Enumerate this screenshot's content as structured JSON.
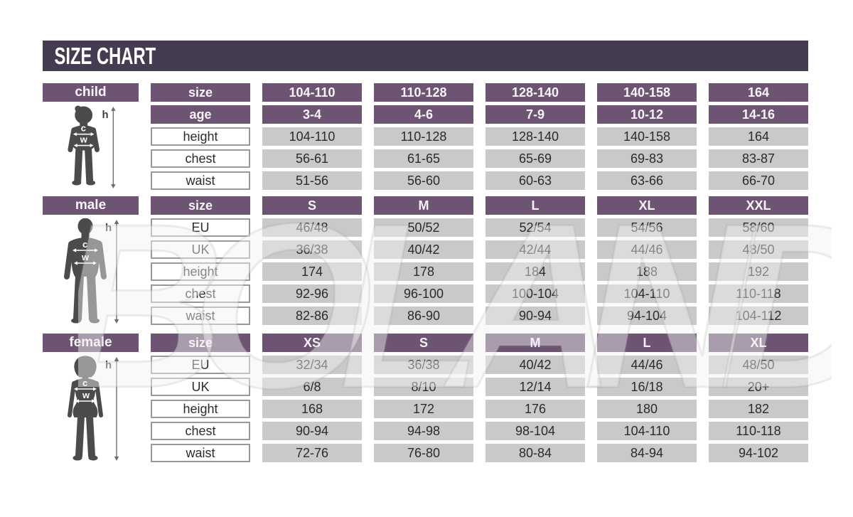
{
  "title": "SIZE CHART",
  "watermark": "BOLAND",
  "colors": {
    "banner": "#463c52",
    "header_purple": "#6c5472",
    "cell_gray": "#c9c9c9",
    "silhouette": "#4b4b4b",
    "label_border": "#999999",
    "text_dark": "#2b2b2b"
  },
  "figure_labels": {
    "height": "h",
    "chest": "c",
    "waist": "w"
  },
  "sections": [
    {
      "id": "child",
      "label": "child",
      "rows": [
        {
          "label": "size",
          "type": "header",
          "values": [
            "104-110",
            "110-128",
            "128-140",
            "140-158",
            "164"
          ]
        },
        {
          "label": "age",
          "type": "header",
          "values": [
            "3-4",
            "4-6",
            "7-9",
            "10-12",
            "14-16"
          ]
        },
        {
          "label": "height",
          "type": "data",
          "values": [
            "104-110",
            "110-128",
            "128-140",
            "140-158",
            "164"
          ]
        },
        {
          "label": "chest",
          "type": "data",
          "values": [
            "56-61",
            "61-65",
            "65-69",
            "69-83",
            "83-87"
          ]
        },
        {
          "label": "waist",
          "type": "data",
          "values": [
            "51-56",
            "56-60",
            "60-63",
            "63-66",
            "66-70"
          ]
        }
      ]
    },
    {
      "id": "male",
      "label": "male",
      "rows": [
        {
          "label": "size",
          "type": "header",
          "values": [
            "S",
            "M",
            "L",
            "XL",
            "XXL"
          ]
        },
        {
          "label": "EU",
          "type": "data",
          "values": [
            "46/48",
            "50/52",
            "52/54",
            "54/56",
            "58/60"
          ]
        },
        {
          "label": "UK",
          "type": "data",
          "values": [
            "36/38",
            "40/42",
            "42/44",
            "44/46",
            "48/50"
          ]
        },
        {
          "label": "height",
          "type": "data",
          "values": [
            "174",
            "178",
            "184",
            "188",
            "192"
          ]
        },
        {
          "label": "chest",
          "type": "data",
          "values": [
            "92-96",
            "96-100",
            "100-104",
            "104-110",
            "110-118"
          ]
        },
        {
          "label": "waist",
          "type": "data",
          "values": [
            "82-86",
            "86-90",
            "90-94",
            "94-104",
            "104-112"
          ]
        }
      ]
    },
    {
      "id": "female",
      "label": "female",
      "rows": [
        {
          "label": "size",
          "type": "header",
          "values": [
            "XS",
            "S",
            "M",
            "L",
            "XL"
          ]
        },
        {
          "label": "EU",
          "type": "data",
          "values": [
            "32/34",
            "36/38",
            "40/42",
            "44/46",
            "48/50"
          ]
        },
        {
          "label": "UK",
          "type": "data",
          "values": [
            "6/8",
            "8/10",
            "12/14",
            "16/18",
            "20+"
          ]
        },
        {
          "label": "height",
          "type": "data",
          "values": [
            "168",
            "172",
            "176",
            "180",
            "182"
          ]
        },
        {
          "label": "chest",
          "type": "data",
          "values": [
            "90-94",
            "94-98",
            "98-104",
            "104-110",
            "110-118"
          ]
        },
        {
          "label": "waist",
          "type": "data",
          "values": [
            "72-76",
            "76-80",
            "80-84",
            "84-94",
            "94-102"
          ]
        }
      ]
    }
  ],
  "chart_data": [
    {
      "type": "table",
      "title": "child",
      "row_labels": [
        "size",
        "age",
        "height",
        "chest",
        "waist"
      ],
      "rows": [
        [
          "104-110",
          "110-128",
          "128-140",
          "140-158",
          "164"
        ],
        [
          "3-4",
          "4-6",
          "7-9",
          "10-12",
          "14-16"
        ],
        [
          "104-110",
          "110-128",
          "128-140",
          "140-158",
          "164"
        ],
        [
          "56-61",
          "61-65",
          "65-69",
          "69-83",
          "83-87"
        ],
        [
          "51-56",
          "56-60",
          "60-63",
          "63-66",
          "66-70"
        ]
      ]
    },
    {
      "type": "table",
      "title": "male",
      "row_labels": [
        "size",
        "EU",
        "UK",
        "height",
        "chest",
        "waist"
      ],
      "rows": [
        [
          "S",
          "M",
          "L",
          "XL",
          "XXL"
        ],
        [
          "46/48",
          "50/52",
          "52/54",
          "54/56",
          "58/60"
        ],
        [
          "36/38",
          "40/42",
          "42/44",
          "44/46",
          "48/50"
        ],
        [
          "174",
          "178",
          "184",
          "188",
          "192"
        ],
        [
          "92-96",
          "96-100",
          "100-104",
          "104-110",
          "110-118"
        ],
        [
          "82-86",
          "86-90",
          "90-94",
          "94-104",
          "104-112"
        ]
      ]
    },
    {
      "type": "table",
      "title": "female",
      "row_labels": [
        "size",
        "EU",
        "UK",
        "height",
        "chest",
        "waist"
      ],
      "rows": [
        [
          "XS",
          "S",
          "M",
          "L",
          "XL"
        ],
        [
          "32/34",
          "36/38",
          "40/42",
          "44/46",
          "48/50"
        ],
        [
          "6/8",
          "8/10",
          "12/14",
          "16/18",
          "20+"
        ],
        [
          "168",
          "172",
          "176",
          "180",
          "182"
        ],
        [
          "90-94",
          "94-98",
          "98-104",
          "104-110",
          "110-118"
        ],
        [
          "72-76",
          "76-80",
          "80-84",
          "84-94",
          "94-102"
        ]
      ]
    }
  ]
}
